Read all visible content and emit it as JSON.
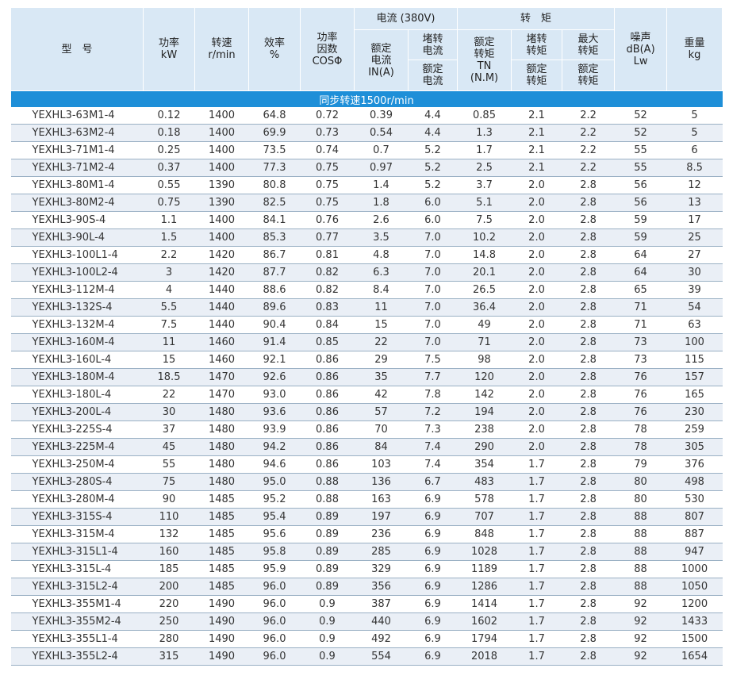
{
  "header": {
    "model": "型　号",
    "power": "功率\nkW",
    "speed": "转速\nr/min",
    "efficiency": "效率\n%",
    "pf": "功率\n因数\nCOSΦ",
    "current_group": "电流 (380V)",
    "rated_current": "额定\n电流\nIN(A)",
    "locked_current": "堵转\n电流",
    "locked_current_ratio": "额定\n电流",
    "torque_group": "转　矩",
    "rated_torque": "额定\n转矩\nTN\n(N.M)",
    "locked_torque": "堵转\n转矩",
    "locked_torque_ratio": "额定\n转矩",
    "max_torque": "最大\n转矩",
    "max_torque_ratio": "额定\n转矩",
    "noise": "噪声\ndB(A)\nLw",
    "weight": "重量\nkg"
  },
  "band": "同步转速1500r/min",
  "rows": [
    [
      "YEXHL3-63M1-4",
      "0.12",
      "1400",
      "64.8",
      "0.72",
      "0.39",
      "4.4",
      "0.85",
      "2.1",
      "2.2",
      "52",
      "5"
    ],
    [
      "YEXHL3-63M2-4",
      "0.18",
      "1400",
      "69.9",
      "0.73",
      "0.54",
      "4.4",
      "1.3",
      "2.1",
      "2.2",
      "52",
      "5"
    ],
    [
      "YEXHL3-71M1-4",
      "0.25",
      "1400",
      "73.5",
      "0.74",
      "0.7",
      "5.2",
      "1.7",
      "2.1",
      "2.2",
      "55",
      "6"
    ],
    [
      "YEXHL3-71M2-4",
      "0.37",
      "1400",
      "77.3",
      "0.75",
      "0.97",
      "5.2",
      "2.5",
      "2.1",
      "2.2",
      "55",
      "8.5"
    ],
    [
      "YEXHL3-80M1-4",
      "0.55",
      "1390",
      "80.8",
      "0.75",
      "1.4",
      "5.2",
      "3.7",
      "2.0",
      "2.8",
      "56",
      "12"
    ],
    [
      "YEXHL3-80M2-4",
      "0.75",
      "1390",
      "82.5",
      "0.75",
      "1.8",
      "6.0",
      "5.1",
      "2.0",
      "2.8",
      "56",
      "13"
    ],
    [
      "YEXHL3-90S-4",
      "1.1",
      "1400",
      "84.1",
      "0.76",
      "2.6",
      "6.0",
      "7.5",
      "2.0",
      "2.8",
      "59",
      "17"
    ],
    [
      "YEXHL3-90L-4",
      "1.5",
      "1400",
      "85.3",
      "0.77",
      "3.5",
      "7.0",
      "10.2",
      "2.0",
      "2.8",
      "59",
      "25"
    ],
    [
      "YEXHL3-100L1-4",
      "2.2",
      "1420",
      "86.7",
      "0.81",
      "4.8",
      "7.0",
      "14.8",
      "2.0",
      "2.8",
      "64",
      "27"
    ],
    [
      "YEXHL3-100L2-4",
      "3",
      "1420",
      "87.7",
      "0.82",
      "6.3",
      "7.0",
      "20.1",
      "2.0",
      "2.8",
      "64",
      "30"
    ],
    [
      "YEXHL3-112M-4",
      "4",
      "1440",
      "88.6",
      "0.82",
      "8.4",
      "7.0",
      "26.5",
      "2.0",
      "2.8",
      "65",
      "39"
    ],
    [
      "YEXHL3-132S-4",
      "5.5",
      "1440",
      "89.6",
      "0.83",
      "11",
      "7.0",
      "36.4",
      "2.0",
      "2.8",
      "71",
      "54"
    ],
    [
      "YEXHL3-132M-4",
      "7.5",
      "1440",
      "90.4",
      "0.84",
      "15",
      "7.0",
      "49",
      "2.0",
      "2.8",
      "71",
      "63"
    ],
    [
      "YEXHL3-160M-4",
      "11",
      "1460",
      "91.4",
      "0.85",
      "22",
      "7.0",
      "71",
      "2.0",
      "2.8",
      "73",
      "100"
    ],
    [
      "YEXHL3-160L-4",
      "15",
      "1460",
      "92.1",
      "0.86",
      "29",
      "7.5",
      "98",
      "2.0",
      "2.8",
      "73",
      "115"
    ],
    [
      "YEXHL3-180M-4",
      "18.5",
      "1470",
      "92.6",
      "0.86",
      "35",
      "7.7",
      "120",
      "2.0",
      "2.8",
      "76",
      "157"
    ],
    [
      "YEXHL3-180L-4",
      "22",
      "1470",
      "93.0",
      "0.86",
      "42",
      "7.8",
      "142",
      "2.0",
      "2.8",
      "76",
      "165"
    ],
    [
      "YEXHL3-200L-4",
      "30",
      "1480",
      "93.6",
      "0.86",
      "57",
      "7.2",
      "194",
      "2.0",
      "2.8",
      "76",
      "230"
    ],
    [
      "YEXHL3-225S-4",
      "37",
      "1480",
      "93.9",
      "0.86",
      "70",
      "7.3",
      "238",
      "2.0",
      "2.8",
      "78",
      "259"
    ],
    [
      "YEXHL3-225M-4",
      "45",
      "1480",
      "94.2",
      "0.86",
      "84",
      "7.4",
      "290",
      "2.0",
      "2.8",
      "78",
      "305"
    ],
    [
      "YEXHL3-250M-4",
      "55",
      "1480",
      "94.6",
      "0.86",
      "103",
      "7.4",
      "354",
      "1.7",
      "2.8",
      "79",
      "376"
    ],
    [
      "YEXHL3-280S-4",
      "75",
      "1480",
      "95.0",
      "0.88",
      "136",
      "6.7",
      "483",
      "1.7",
      "2.8",
      "80",
      "498"
    ],
    [
      "YEXHL3-280M-4",
      "90",
      "1485",
      "95.2",
      "0.88",
      "163",
      "6.9",
      "578",
      "1.7",
      "2.8",
      "80",
      "530"
    ],
    [
      "YEXHL3-315S-4",
      "110",
      "1485",
      "95.4",
      "0.89",
      "197",
      "6.9",
      "707",
      "1.7",
      "2.8",
      "88",
      "807"
    ],
    [
      "YEXHL3-315M-4",
      "132",
      "1485",
      "95.6",
      "0.89",
      "236",
      "6.9",
      "848",
      "1.7",
      "2.8",
      "88",
      "887"
    ],
    [
      "YEXHL3-315L1-4",
      "160",
      "1485",
      "95.8",
      "0.89",
      "285",
      "6.9",
      "1028",
      "1.7",
      "2.8",
      "88",
      "947"
    ],
    [
      "YEXHL3-315L-4",
      "185",
      "1485",
      "95.9",
      "0.89",
      "329",
      "6.9",
      "1189",
      "1.7",
      "2.8",
      "88",
      "1000"
    ],
    [
      "YEXHL3-315L2-4",
      "200",
      "1485",
      "96.0",
      "0.89",
      "356",
      "6.9",
      "1286",
      "1.7",
      "2.8",
      "88",
      "1050"
    ],
    [
      "YEXHL3-355M1-4",
      "220",
      "1490",
      "96.0",
      "0.9",
      "387",
      "6.9",
      "1414",
      "1.7",
      "2.8",
      "92",
      "1200"
    ],
    [
      "YEXHL3-355M2-4",
      "250",
      "1490",
      "96.0",
      "0.9",
      "440",
      "6.9",
      "1602",
      "1.7",
      "2.8",
      "92",
      "1433"
    ],
    [
      "YEXHL3-355L1-4",
      "280",
      "1490",
      "96.0",
      "0.9",
      "492",
      "6.9",
      "1794",
      "1.7",
      "2.8",
      "92",
      "1500"
    ],
    [
      "YEXHL3-355L2-4",
      "315",
      "1490",
      "96.0",
      "0.9",
      "554",
      "6.9",
      "2018",
      "1.7",
      "2.8",
      "92",
      "1654"
    ]
  ]
}
